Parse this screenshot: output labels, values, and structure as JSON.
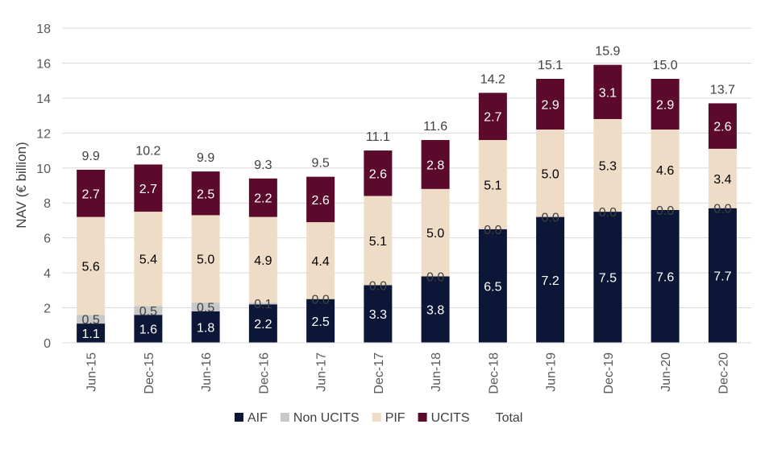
{
  "chart_data": {
    "type": "bar",
    "stacked": true,
    "title": "",
    "xlabel": "",
    "ylabel": "NAV (€ billion)",
    "ylim": [
      0,
      18
    ],
    "yticks": [
      0,
      2,
      4,
      6,
      8,
      10,
      12,
      14,
      16,
      18
    ],
    "grid": true,
    "legend_position": "bottom",
    "categories": [
      "Jun-15",
      "Dec-15",
      "Jun-16",
      "Dec-16",
      "Jun-17",
      "Dec-17",
      "Jun-18",
      "Dec-18",
      "Jun-19",
      "Dec-19",
      "Jun-20",
      "Dec-20"
    ],
    "series": [
      {
        "name": "AIF",
        "color": "#0c1637",
        "label_color": "#ffffff",
        "values": [
          1.1,
          1.6,
          1.8,
          2.2,
          2.5,
          3.3,
          3.8,
          6.5,
          7.2,
          7.5,
          7.6,
          7.7
        ]
      },
      {
        "name": "Non UCITS",
        "color": "#c8c8c8",
        "label_color": "#404040",
        "values": [
          0.5,
          0.5,
          0.5,
          0.1,
          0.0,
          0.0,
          0.0,
          0.0,
          0.0,
          0.0,
          0.0,
          0.0
        ]
      },
      {
        "name": "PIF",
        "color": "#efdcc7",
        "label_color": "#000000",
        "values": [
          5.6,
          5.4,
          5.0,
          4.9,
          4.4,
          5.1,
          5.0,
          5.1,
          5.0,
          5.3,
          4.6,
          3.4
        ]
      },
      {
        "name": "UCITS",
        "color": "#5b0a2b",
        "label_color": "#ffffff",
        "values": [
          2.7,
          2.7,
          2.5,
          2.2,
          2.6,
          2.6,
          2.8,
          2.7,
          2.9,
          3.1,
          2.9,
          2.6
        ]
      }
    ],
    "total": {
      "name": "Total",
      "values": [
        "9.9",
        "10.2",
        "9.9",
        "9.3",
        "9.5",
        "11.1",
        "11.6",
        "14.2",
        "15.1",
        "15.9",
        "15.0",
        "13.7"
      ]
    }
  }
}
